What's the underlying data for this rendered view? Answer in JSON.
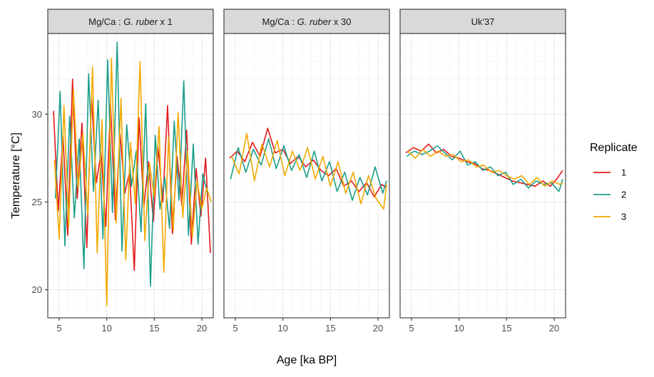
{
  "chart_data": {
    "type": "line",
    "xlabel": "Age [ka BP]",
    "ylabel": "Temperature [°C]",
    "xlim": [
      3.8,
      21.2
    ],
    "ylim": [
      18.4,
      34.6
    ],
    "x_ticks": [
      5,
      10,
      15,
      20
    ],
    "y_ticks": [
      20,
      25,
      30
    ],
    "grid": true,
    "legend": {
      "title": "Replicate",
      "position": "right"
    },
    "colors": {
      "1": "#e31a1c",
      "2": "#1b9e8a",
      "3": "#f2a900"
    },
    "panels": [
      {
        "strip_parts": [
          {
            "text": "Mg/Ca : ",
            "italic": false
          },
          {
            "text": "G. ruber",
            "italic": true
          },
          {
            "text": " x 1",
            "italic": false
          }
        ],
        "series": [
          {
            "name": "1",
            "x": [
              4.4,
              4.9,
              5.4,
              5.9,
              6.4,
              6.9,
              7.4,
              7.9,
              8.4,
              8.9,
              9.4,
              9.9,
              10.4,
              10.9,
              11.4,
              11.9,
              12.4,
              12.9,
              13.4,
              13.9,
              14.4,
              14.9,
              15.4,
              15.9,
              16.4,
              16.9,
              17.4,
              17.9,
              18.4,
              18.9,
              19.4,
              19.9,
              20.4,
              20.9
            ],
            "y": [
              30.2,
              24.5,
              28.8,
              23.1,
              32,
              25.2,
              29.5,
              22.4,
              31,
              26.1,
              27.8,
              23.6,
              30.6,
              24,
              28.9,
              25.5,
              26.7,
              21.1,
              29.8,
              24.7,
              27.3,
              23.9,
              28.1,
              25,
              30.5,
              23.2,
              27.6,
              24.8,
              29.1,
              22.6,
              26.9,
              24.2,
              27.5,
              22.1
            ]
          },
          {
            "name": "2",
            "x": [
              4.6,
              5.1,
              5.6,
              6.1,
              6.6,
              7.1,
              7.6,
              8.1,
              8.6,
              9.1,
              9.6,
              10.1,
              10.6,
              11.1,
              11.6,
              12.1,
              12.6,
              13.1,
              13.6,
              14.1,
              14.6,
              15.1,
              15.6,
              16.1,
              16.6,
              17.1,
              17.6,
              18.1,
              18.6,
              19.1,
              19.6,
              20.1,
              20.6
            ],
            "y": [
              25.2,
              31.3,
              22.5,
              29.9,
              24.1,
              28.6,
              21.2,
              32.3,
              25.6,
              30.8,
              22.9,
              33.1,
              24.4,
              34.1,
              22.2,
              29.4,
              25.9,
              27.9,
              23.3,
              30.6,
              20.2,
              28.8,
              24.6,
              26.4,
              23.5,
              29.6,
              25.1,
              31.9,
              23.1,
              28.3,
              22.6,
              26.6,
              25.5
            ]
          },
          {
            "name": "3",
            "x": [
              4.5,
              5.0,
              5.5,
              6.0,
              6.5,
              7.0,
              7.5,
              8.0,
              8.5,
              9.0,
              9.5,
              10.0,
              10.5,
              11.0,
              11.5,
              12.0,
              12.5,
              13.0,
              13.5,
              14.0,
              14.5,
              15.0,
              15.5,
              16.0,
              16.5,
              17.0,
              17.5,
              18.0,
              18.5,
              19.0,
              19.5,
              20.0,
              20.5,
              21.0
            ],
            "y": [
              27.4,
              22.9,
              30.5,
              23.6,
              31.4,
              25.8,
              28.9,
              24.3,
              32.7,
              22.1,
              29.7,
              19.1,
              33.2,
              23.8,
              30.9,
              21.7,
              28.4,
              24.9,
              33.0,
              22.8,
              27.2,
              25.3,
              29.3,
              21.0,
              28.7,
              23.4,
              30.1,
              24.1,
              27.9,
              23.0,
              26.2,
              24.6,
              25.8,
              25.0
            ]
          }
        ]
      },
      {
        "strip_parts": [
          {
            "text": "Mg/Ca : ",
            "italic": false
          },
          {
            "text": "G. ruber",
            "italic": true
          },
          {
            "text": " x 30",
            "italic": false
          }
        ],
        "series": [
          {
            "name": "1",
            "x": [
              4.4,
              5.2,
              6.0,
              6.8,
              7.6,
              8.4,
              9.2,
              10.0,
              10.8,
              11.6,
              12.4,
              13.2,
              14.0,
              14.8,
              15.6,
              16.4,
              17.2,
              18.0,
              18.8,
              19.6,
              20.4,
              20.9
            ],
            "y": [
              27.5,
              27.9,
              27.3,
              28.4,
              27.6,
              29.2,
              27.8,
              28.0,
              27.2,
              27.6,
              27.0,
              27.4,
              26.8,
              26.5,
              26.9,
              25.9,
              26.2,
              25.6,
              26.1,
              25.3,
              26.0,
              25.8
            ]
          },
          {
            "name": "2",
            "x": [
              4.5,
              5.3,
              6.1,
              6.9,
              7.7,
              8.5,
              9.3,
              10.1,
              10.9,
              11.7,
              12.5,
              13.3,
              14.1,
              14.9,
              15.7,
              16.5,
              17.3,
              18.1,
              18.9,
              19.7,
              20.5,
              20.9
            ],
            "y": [
              26.3,
              28.1,
              26.7,
              28.0,
              27.1,
              28.6,
              26.9,
              28.2,
              26.8,
              27.7,
              26.4,
              27.9,
              26.2,
              27.3,
              25.6,
              26.7,
              25.1,
              26.4,
              25.4,
              27.0,
              25.5,
              26.2
            ]
          },
          {
            "name": "3",
            "x": [
              4.6,
              5.4,
              6.2,
              7.0,
              7.8,
              8.6,
              9.4,
              10.2,
              11.0,
              11.8,
              12.6,
              13.4,
              14.2,
              15.0,
              15.8,
              16.6,
              17.4,
              18.2,
              19.0,
              19.8,
              20.6,
              20.9
            ],
            "y": [
              27.6,
              26.6,
              28.9,
              26.2,
              28.3,
              27.0,
              28.5,
              26.5,
              27.9,
              26.8,
              28.1,
              26.3,
              27.6,
              25.9,
              27.3,
              25.5,
              26.7,
              24.9,
              26.5,
              25.2,
              24.6,
              26.0
            ]
          }
        ]
      },
      {
        "strip_parts": [
          {
            "text": "Uk'37",
            "italic": false
          }
        ],
        "series": [
          {
            "name": "1",
            "x": [
              4.4,
              5.2,
              6.0,
              6.8,
              7.6,
              8.4,
              9.2,
              10.0,
              10.8,
              11.6,
              12.4,
              13.2,
              14.0,
              14.8,
              15.6,
              16.4,
              17.2,
              18.0,
              18.8,
              19.6,
              20.4,
              20.9
            ],
            "y": [
              27.8,
              28.1,
              27.9,
              28.3,
              27.8,
              28.0,
              27.6,
              27.5,
              27.3,
              27.2,
              26.9,
              26.8,
              26.6,
              26.4,
              26.2,
              26.1,
              26.0,
              25.9,
              26.2,
              25.9,
              26.4,
              26.8
            ]
          },
          {
            "name": "2",
            "x": [
              4.5,
              5.3,
              6.1,
              6.9,
              7.7,
              8.5,
              9.3,
              10.1,
              10.9,
              11.7,
              12.5,
              13.3,
              14.1,
              14.9,
              15.7,
              16.5,
              17.3,
              18.1,
              18.9,
              19.7,
              20.5,
              20.9
            ],
            "y": [
              27.6,
              27.9,
              27.7,
              27.9,
              28.2,
              27.8,
              27.4,
              27.9,
              27.1,
              27.3,
              26.8,
              27.0,
              26.5,
              26.7,
              26.0,
              26.3,
              25.8,
              26.2,
              26.0,
              26.1,
              25.6,
              26.3
            ]
          },
          {
            "name": "3",
            "x": [
              4.6,
              5.4,
              6.2,
              7.0,
              7.8,
              8.6,
              9.4,
              10.2,
              11.0,
              11.8,
              12.6,
              13.4,
              14.2,
              15.0,
              15.8,
              16.6,
              17.4,
              18.2,
              19.0,
              19.8,
              20.6,
              20.9
            ],
            "y": [
              27.9,
              27.5,
              28.0,
              27.6,
              27.9,
              27.6,
              27.7,
              27.3,
              27.4,
              27.0,
              27.1,
              26.7,
              26.8,
              26.5,
              26.3,
              26.5,
              26.0,
              26.4,
              25.9,
              26.2,
              26.0,
              26.1
            ]
          }
        ]
      }
    ]
  }
}
